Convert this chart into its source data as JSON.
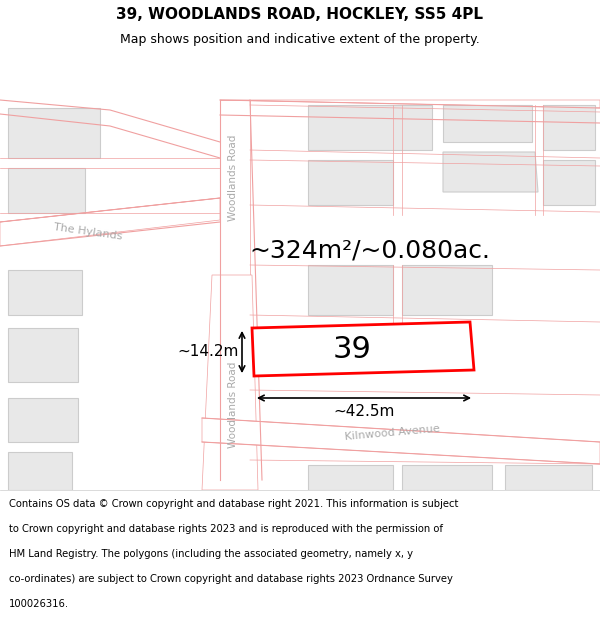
{
  "title": "39, WOODLANDS ROAD, HOCKLEY, SS5 4PL",
  "subtitle": "Map shows position and indicative extent of the property.",
  "footer_lines": [
    "Contains OS data © Crown copyright and database right 2021. This information is subject",
    "to Crown copyright and database rights 2023 and is reproduced with the permission of",
    "HM Land Registry. The polygons (including the associated geometry, namely x, y",
    "co-ordinates) are subject to Crown copyright and database rights 2023 Ordnance Survey",
    "100026316."
  ],
  "area_label": "~324m²/~0.080ac.",
  "width_label": "~42.5m",
  "height_label": "~14.2m",
  "number_label": "39",
  "background_color": "#ffffff",
  "road_stroke": "#f0a0a0",
  "highlight_color": "#ff0000",
  "title_fontsize": 11,
  "subtitle_fontsize": 9,
  "footer_fontsize": 7.2,
  "area_fontsize": 18,
  "label_fontsize": 11,
  "number_fontsize": 22
}
